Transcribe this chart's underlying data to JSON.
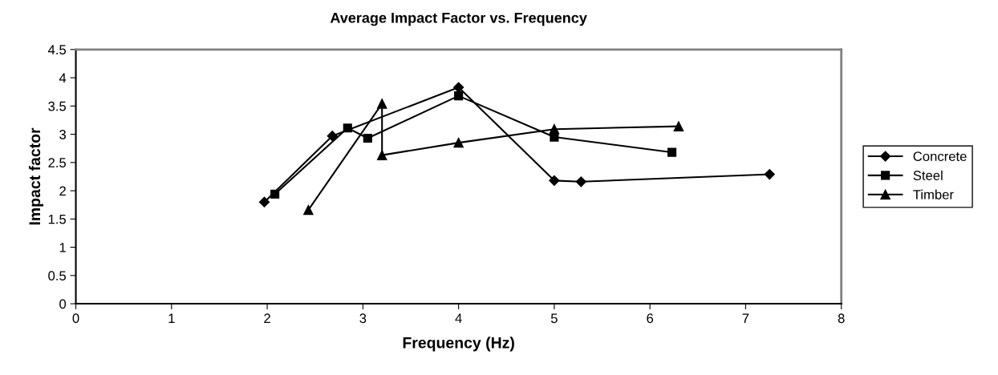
{
  "chart_data": {
    "type": "line",
    "title": "Average Impact Factor vs. Frequency",
    "xlabel": "Frequency (Hz)",
    "ylabel": "Impact factor",
    "xlim": [
      0,
      8
    ],
    "xticks": [
      0,
      1,
      2,
      3,
      4,
      5,
      6,
      7,
      8
    ],
    "ylim": [
      0,
      4.5
    ],
    "yticks": [
      0,
      0.5,
      1,
      1.5,
      2,
      2.5,
      3,
      3.5,
      4,
      4.5
    ],
    "grid": false,
    "legend": "right",
    "series": [
      {
        "name": "Concrete",
        "color": "#000000",
        "marker": "diamond",
        "x": [
          1.97,
          2.68,
          4.0,
          5.0,
          5.28,
          7.25
        ],
        "values": [
          1.8,
          2.97,
          3.83,
          2.18,
          2.16,
          2.29
        ]
      },
      {
        "name": "Steel",
        "color": "#000000",
        "marker": "square",
        "x": [
          2.08,
          2.84,
          3.05,
          4.0,
          5.0,
          6.23
        ],
        "values": [
          1.94,
          3.11,
          2.93,
          3.68,
          2.95,
          2.68
        ]
      },
      {
        "name": "Timber",
        "color": "#000000",
        "marker": "triangle",
        "x": [
          2.43,
          3.2,
          3.2,
          4.0,
          5.0,
          6.3
        ],
        "values": [
          1.66,
          3.54,
          2.63,
          2.85,
          3.09,
          3.14
        ]
      }
    ]
  }
}
